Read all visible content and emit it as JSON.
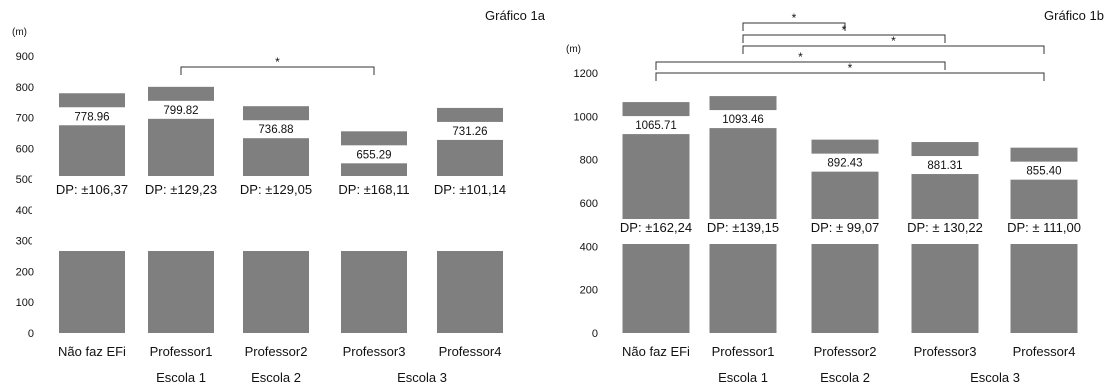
{
  "chart_data": [
    {
      "type": "bar",
      "title": "Gráfico 1a",
      "unit": "(m)",
      "ylim": [
        0,
        900
      ],
      "yticks": [
        0,
        100,
        200,
        300,
        400,
        500,
        600,
        700,
        800,
        900
      ],
      "categories": [
        "Não faz EFi",
        "Professor1",
        "Professor2",
        "Professor3",
        "Professor4"
      ],
      "values": [
        778.96,
        799.82,
        736.88,
        655.29,
        731.26
      ],
      "value_labels": [
        "778.96",
        "799.82",
        "736.88",
        "655.29",
        "731.26"
      ],
      "sd_labels": [
        "DP: ±106,37",
        "DP: ±129,23",
        "DP: ±129,05",
        "DP: ±168,11",
        "DP: ±101,14"
      ],
      "groups": [
        {
          "label": "Escola  1",
          "categories": [
            1
          ]
        },
        {
          "label": "Escola  2",
          "categories": [
            2
          ]
        },
        {
          "label": "Escola  3",
          "categories": [
            3,
            4
          ]
        }
      ],
      "significance": [
        {
          "from": 1,
          "to": 3,
          "label": "*"
        }
      ],
      "bar_color": "#7f7f7f"
    },
    {
      "type": "bar",
      "title": "Gráfico 1b",
      "unit": "(m)",
      "ylim": [
        0,
        1200
      ],
      "yticks": [
        0,
        200,
        400,
        600,
        800,
        1000,
        1200
      ],
      "categories": [
        "Não faz EFi",
        "Professor1",
        "Professor2",
        "Professor3",
        "Professor4"
      ],
      "values": [
        1065.71,
        1093.46,
        892.43,
        881.31,
        855.4
      ],
      "value_labels": [
        "1065.71",
        "1093.46",
        "892.43",
        "881.31",
        "855.40"
      ],
      "sd_labels": [
        "DP: ±162,24",
        "DP: ±139,15",
        "DP: ± 99,07",
        "DP: ± 130,22",
        "DP: ± 111,00"
      ],
      "groups": [
        {
          "label": "Escola  1",
          "categories": [
            1
          ]
        },
        {
          "label": "Escola  2",
          "categories": [
            2
          ]
        },
        {
          "label": "Escola  3",
          "categories": [
            3,
            4
          ]
        }
      ],
      "significance": [
        {
          "from": 1,
          "to": 2,
          "label": "*"
        },
        {
          "from": 1,
          "to": 3,
          "label": "*"
        },
        {
          "from": 1,
          "to": 4,
          "label": "*"
        },
        {
          "from": 0,
          "to": 3,
          "label": "*"
        },
        {
          "from": 0,
          "to": 4,
          "label": "*"
        }
      ],
      "bar_color": "#7f7f7f"
    }
  ]
}
